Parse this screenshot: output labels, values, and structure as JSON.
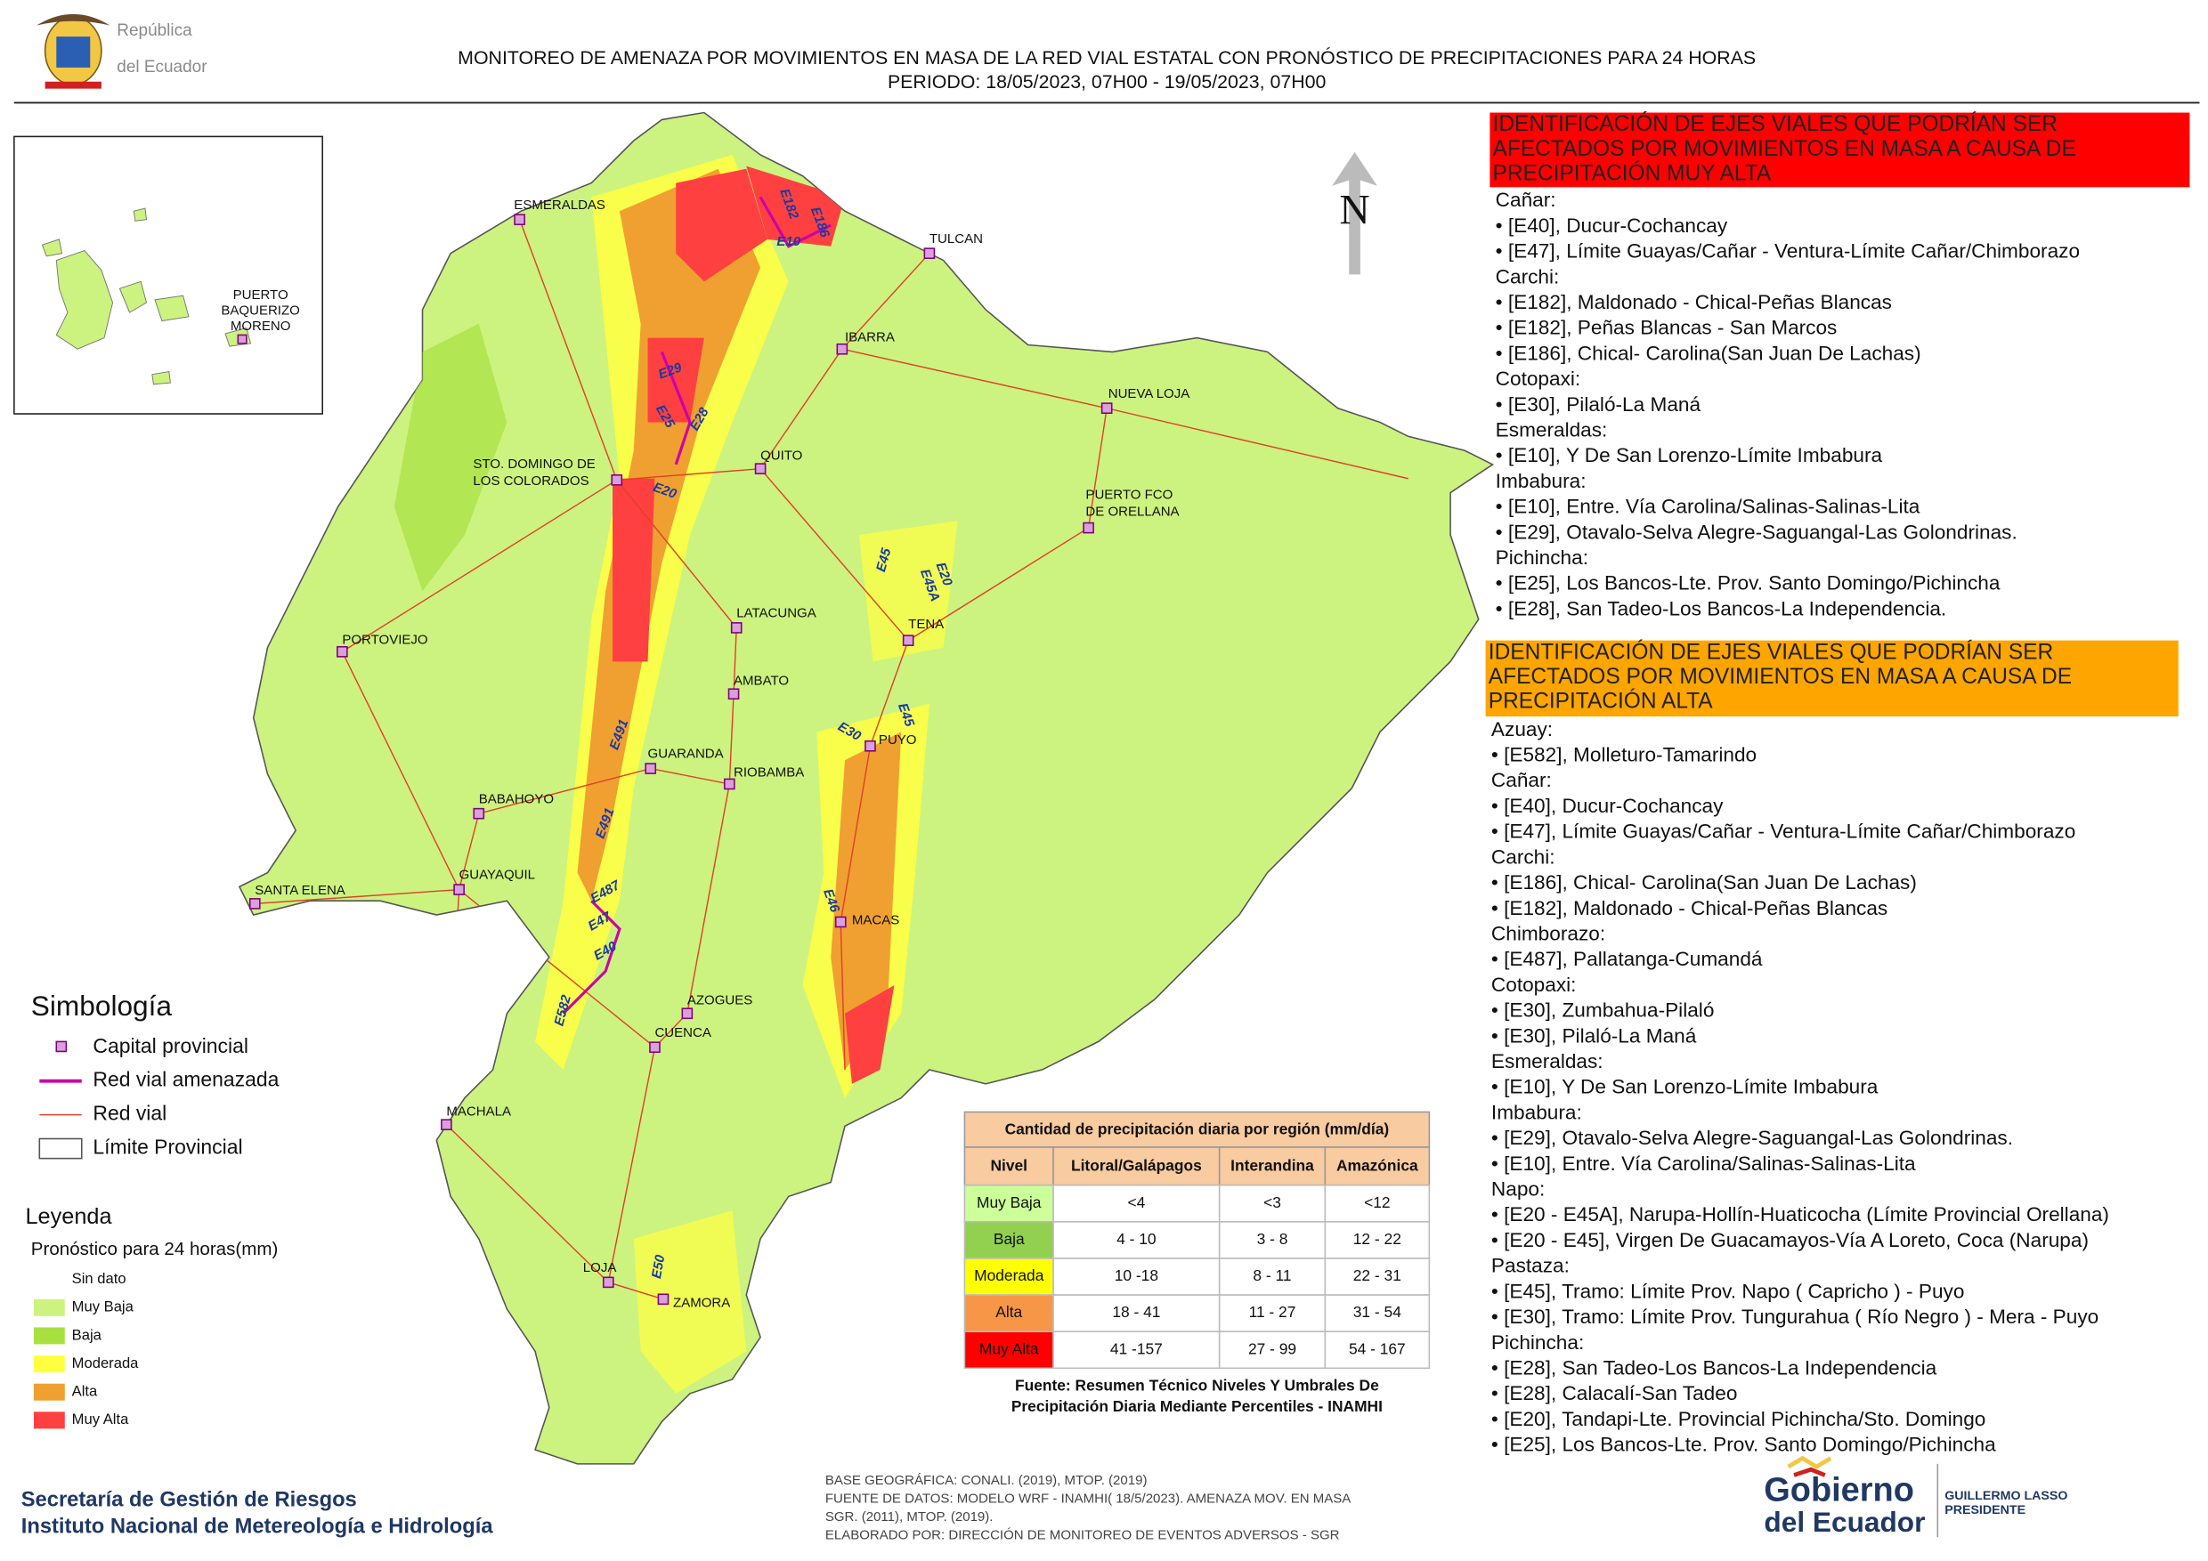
{
  "header": {
    "logo_text": [
      "República",
      "del Ecuador"
    ],
    "title": "MONITOREO DE AMENAZA POR MOVIMIENTOS EN MASA DE LA RED VIAL  ESTATAL  CON PRONÓSTICO  DE  PRECIPITACIONES PARA 24 HORAS",
    "period": "PERIODO: 18/05/2023, 07H00 - 19/05/2023, 07H00"
  },
  "inset": {
    "label": [
      "PUERTO",
      "BAQUERIZO",
      "MORENO"
    ]
  },
  "map": {
    "north": "N",
    "cities": [
      [
        "ESMERALDAS"
      ],
      [
        "TULCAN"
      ],
      [
        "IBARRA"
      ],
      [
        "NUEVA LOJA"
      ],
      [
        "QUITO"
      ],
      [
        "STO. DOMINGO DE",
        "LOS COLORADOS"
      ],
      [
        "PUERTO FCO",
        "DE ORELLANA"
      ],
      [
        "LATACUNGA"
      ],
      [
        "TENA"
      ],
      [
        "PORTOVIEJO"
      ],
      [
        "AMBATO"
      ],
      [
        "PUYO"
      ],
      [
        "GUARANDA"
      ],
      [
        "RIOBAMBA"
      ],
      [
        "BABAHOYO"
      ],
      [
        "GUAYAQUIL"
      ],
      [
        "SANTA ELENA"
      ],
      [
        "MACAS"
      ],
      [
        "AZOGUES"
      ],
      [
        "CUENCA"
      ],
      [
        "MACHALA"
      ],
      [
        "LOJA"
      ],
      [
        "ZAMORA"
      ]
    ],
    "roads": [
      "E182",
      "E186",
      "E10",
      "E29",
      "E25",
      "E28",
      "E20",
      "E45",
      "E20",
      "E45A",
      "E45",
      "E30",
      "E491",
      "E491",
      "E487",
      "E47",
      "E40",
      "E582",
      "E46",
      "E50"
    ]
  },
  "symbology": {
    "title": "Simbología",
    "items": [
      "Capital provincial",
      "Red vial amenazada",
      "Red vial",
      "Límite Provincial"
    ]
  },
  "legend": {
    "title": "Leyenda",
    "subtitle": "Pronóstico para 24 horas(mm)",
    "classes": [
      "Sin dato",
      "Muy Baja",
      "Baja",
      "Moderada",
      "Alta",
      "Muy Alta"
    ]
  },
  "table": {
    "title": "Cantidad de precipitación diaria por región (mm/día)",
    "headers": [
      "Nivel",
      "Litoral/Galápagos",
      "Interandina",
      "Amazónica"
    ],
    "rows": [
      [
        "Muy Baja",
        "<4",
        "<3",
        "<12"
      ],
      [
        "Baja",
        "4 - 10",
        "3 - 8",
        "12 - 22"
      ],
      [
        "Moderada",
        "10 -18",
        "8 - 11",
        "22 - 31"
      ],
      [
        "Alta",
        "18 - 41",
        "11 - 27",
        "31 - 54"
      ],
      [
        "Muy Alta",
        "41 -157",
        "27 - 99",
        "54 - 167"
      ]
    ],
    "source": [
      "Fuente: Resumen Técnico Niveles Y Umbrales De",
      "Precipitación Diaria Mediante Percentiles - INAMHI"
    ]
  },
  "panels": [
    {
      "title": [
        "IDENTIFICACIÓN DE EJES VIALES QUE PODRÍAN SER",
        "AFECTADOS POR MOVIMIENTOS EN MASA A CAUSA DE",
        "PRECIPITACIÓN MUY ALTA"
      ],
      "groups": [
        {
          "province": "Cañar:",
          "roads": [
            "• [E40], Ducur-Cochancay",
            "• [E47], Límite Guayas/Cañar - Ventura-Límite Cañar/Chimborazo"
          ]
        },
        {
          "province": "Carchi:",
          "roads": [
            "• [E182], Maldonado - Chical-Peñas Blancas",
            "• [E182], Peñas Blancas - San Marcos",
            "• [E186], Chical- Carolina(San Juan De Lachas)"
          ]
        },
        {
          "province": "Cotopaxi:",
          "roads": [
            "• [E30], Pilaló-La Maná"
          ]
        },
        {
          "province": "Esmeraldas:",
          "roads": [
            "• [E10], Y De San Lorenzo-Límite Imbabura"
          ]
        },
        {
          "province": "Imbabura:",
          "roads": [
            "• [E10], Entre. Vía Carolina/Salinas-Salinas-Lita",
            "• [E29], Otavalo-Selva Alegre-Saguangal-Las Golondrinas."
          ]
        },
        {
          "province": "Pichincha:",
          "roads": [
            "• [E25], Los Bancos-Lte. Prov. Santo Domingo/Pichincha",
            "• [E28], San Tadeo-Los Bancos-La Independencia."
          ]
        }
      ]
    },
    {
      "title": [
        "IDENTIFICACIÓN DE EJES VIALES QUE PODRÍAN SER",
        "AFECTADOS POR MOVIMIENTOS EN MASA A CAUSA DE",
        "PRECIPITACIÓN  ALTA"
      ],
      "groups": [
        {
          "province": "Azuay:",
          "roads": [
            "• [E582], Molleturo-Tamarindo"
          ]
        },
        {
          "province": "Cañar:",
          "roads": [
            "• [E40], Ducur-Cochancay",
            "• [E47], Límite Guayas/Cañar - Ventura-Límite Cañar/Chimborazo"
          ]
        },
        {
          "province": "Carchi:",
          "roads": [
            "• [E186], Chical- Carolina(San Juan De Lachas)",
            "• [E182], Maldonado - Chical-Peñas Blancas"
          ]
        },
        {
          "province": "Chimborazo:",
          "roads": [
            "• [E487], Pallatanga-Cumandá"
          ]
        },
        {
          "province": "Cotopaxi:",
          "roads": [
            "• [E30], Zumbahua-Pilaló",
            "• [E30], Pilaló-La Maná"
          ]
        },
        {
          "province": "Esmeraldas:",
          "roads": [
            "• [E10], Y De San Lorenzo-Límite Imbabura"
          ]
        },
        {
          "province": "Imbabura:",
          "roads": [
            "• [E29], Otavalo-Selva Alegre-Saguangal-Las Golondrinas.",
            "• [E10], Entre. Vía Carolina/Salinas-Salinas-Lita"
          ]
        },
        {
          "province": "Napo:",
          "roads": [
            "• [E20 - E45A], Narupa-Hollín-Huaticocha (Límite Provincial Orellana)",
            "• [E20 - E45], Virgen De Guacamayos-Vía A Loreto, Coca (Narupa)"
          ]
        },
        {
          "province": "Pastaza:",
          "roads": [
            "• [E45], Tramo: Límite Prov. Napo ( Capricho ) - Puyo",
            "• [E30], Tramo: Límite Prov. Tungurahua ( Río Negro ) - Mera - Puyo"
          ]
        },
        {
          "province": "Pichincha:",
          "roads": [
            "• [E28], San Tadeo-Los Bancos-La Independencia",
            "• [E28], Calacalí-San Tadeo",
            "• [E20], Tandapi-Lte. Provincial Pichincha/Sto. Domingo",
            "• [E25], Los Bancos-Lte. Prov. Santo Domingo/Pichincha"
          ]
        }
      ]
    }
  ],
  "footer": {
    "institutions": [
      "Secretaría de Gestión de Riesgos",
      "Instituto Nacional de Metereología e Hidrología"
    ],
    "credits": [
      "BASE GEOGRÁFICA: CONALI. (2019), MTOP. (2019)",
      "FUENTE DE DATOS: MODELO WRF - INAMHI( 18/5/2023).  AMENAZA MOV. EN MASA",
      "SGR. (2011), MTOP. (2019).",
      "ELABORADO POR: DIRECCIÓN DE MONITOREO DE EVENTOS ADVERSOS - SGR"
    ],
    "government": [
      "Gobierno",
      "del Ecuador"
    ],
    "president": [
      "GUILLERMO LASSO",
      "PRESIDENTE"
    ]
  }
}
